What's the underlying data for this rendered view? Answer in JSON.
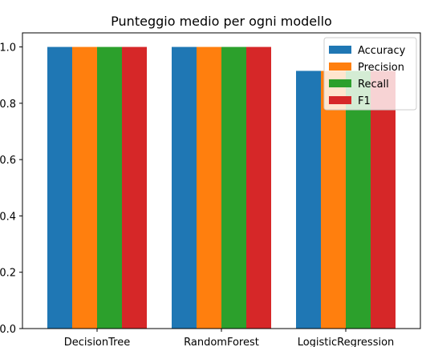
{
  "chart_data": {
    "type": "bar",
    "title": "Punteggio medio per ogni modello",
    "xlabel": "",
    "ylabel": "",
    "categories": [
      "DecisionTree",
      "RandomForest",
      "LogisticRegression"
    ],
    "series": [
      {
        "name": "Accuracy",
        "color": "#1f77b4",
        "values": [
          1.0,
          1.0,
          0.915
        ]
      },
      {
        "name": "Precision",
        "color": "#ff7f0e",
        "values": [
          1.0,
          1.0,
          0.915
        ]
      },
      {
        "name": "Recall",
        "color": "#2ca02c",
        "values": [
          1.0,
          1.0,
          0.915
        ]
      },
      {
        "name": "F1",
        "color": "#d62728",
        "values": [
          1.0,
          1.0,
          0.915
        ]
      }
    ],
    "ylim": [
      0.0,
      1.05
    ],
    "yticks": [
      {
        "value": 0.0,
        "label": "0.0"
      },
      {
        "value": 0.2,
        "label": "0.2"
      },
      {
        "value": 0.4,
        "label": "0.4"
      },
      {
        "value": 0.6,
        "label": "0.6"
      },
      {
        "value": 0.8,
        "label": "0.8"
      },
      {
        "value": 1.0,
        "label": "1.0"
      }
    ],
    "legend_position": "top-right",
    "grid": false
  }
}
